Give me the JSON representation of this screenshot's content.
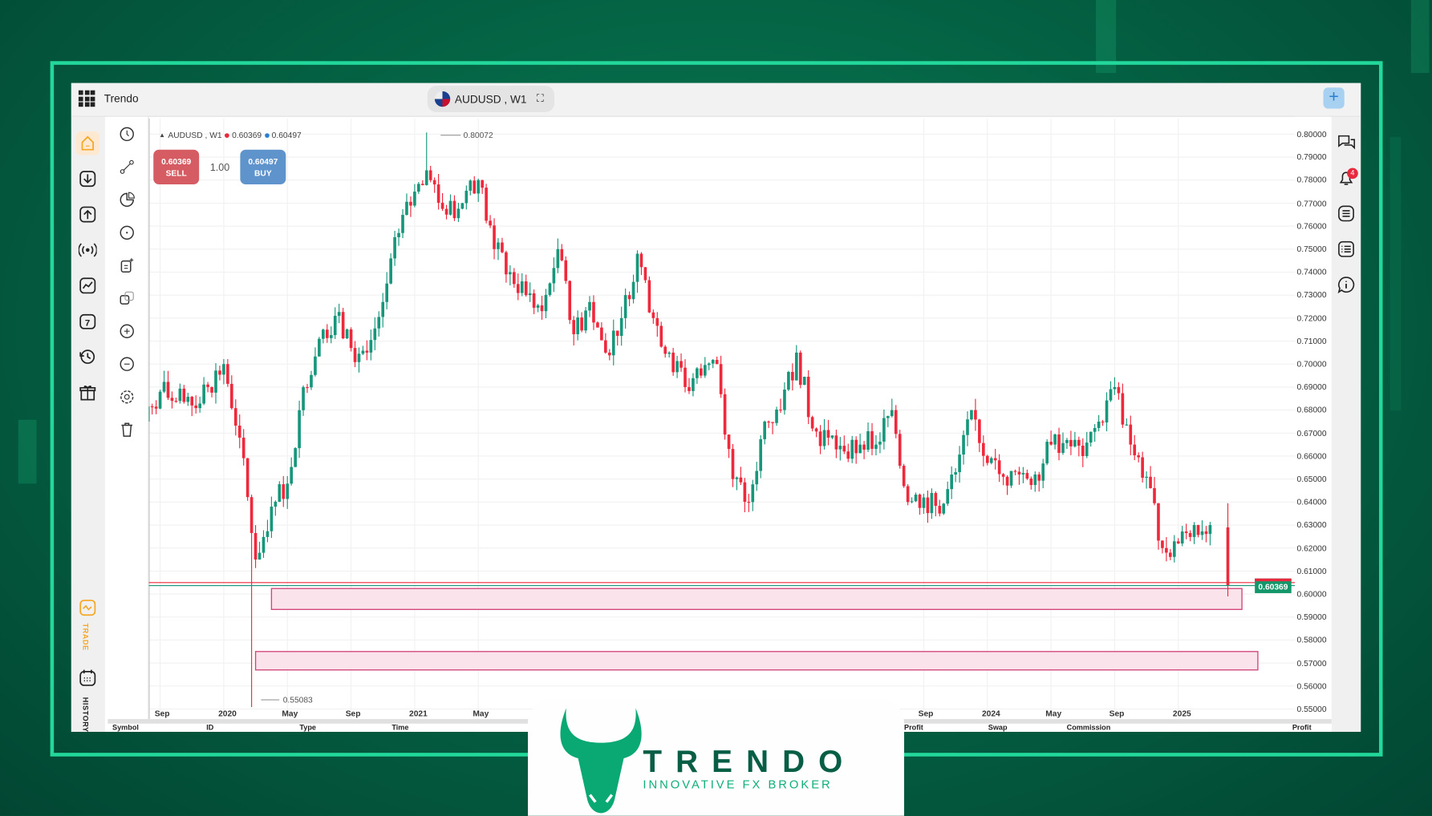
{
  "app": {
    "title": "Trendo",
    "symbol_label": "AUDUSD , W1"
  },
  "legend": {
    "symbol": "AUDUSD , W1",
    "bid": "0.60369",
    "ask": "0.60497"
  },
  "trade": {
    "sell_price": "0.60369",
    "sell_label": "SELL",
    "quantity": "1.00",
    "buy_price": "0.60497",
    "buy_label": "BUY"
  },
  "sidebar": {
    "trade_label": "TRADE",
    "history_label": "HISTORY",
    "items": [
      "home-icon",
      "download-icon",
      "upload-icon",
      "broadcast-icon",
      "chart-icon",
      "calendar-icon",
      "history-icon",
      "gift-icon"
    ]
  },
  "right_panel": {
    "notification_count": "4"
  },
  "table_headers": [
    "Symbol",
    "ID",
    "Type",
    "Time",
    "Profit",
    "Swap",
    "Commission",
    "Profit"
  ],
  "branding": {
    "name": "TRENDO",
    "tagline": "INNOVATIVE FX BROKER"
  },
  "colors": {
    "up": "#16967a",
    "down": "#f0283c",
    "accent": "#f5a623",
    "brand": "#0a7a55",
    "zone_fill": "#fbe3ec",
    "zone_border": "#d2477a"
  },
  "chart_data": {
    "type": "candlestick",
    "timeframe": "W1",
    "current_price_label": "0.60369",
    "high_label": "0.80072",
    "low_label": "0.55083",
    "y_ticks": [
      "0.80000",
      "0.79000",
      "0.78000",
      "0.77000",
      "0.76000",
      "0.75000",
      "0.74000",
      "0.73000",
      "0.72000",
      "0.71000",
      "0.70000",
      "0.69000",
      "0.68000",
      "0.67000",
      "0.66000",
      "0.65000",
      "0.64000",
      "0.63000",
      "0.62000",
      "0.61000",
      "0.60000",
      "0.59000",
      "0.58000",
      "0.57000",
      "0.56000",
      "0.55000"
    ],
    "ylim": [
      0.55,
      0.8
    ],
    "x_ticks": [
      {
        "label": "Sep",
        "date": "2019-09"
      },
      {
        "label": "2020",
        "date": "2020-01"
      },
      {
        "label": "May",
        "date": "2020-05"
      },
      {
        "label": "Sep",
        "date": "2020-09"
      },
      {
        "label": "2021",
        "date": "2021-01"
      },
      {
        "label": "May",
        "date": "2021-05"
      },
      {
        "label": "Sep",
        "date": "2023-09"
      },
      {
        "label": "2024",
        "date": "2024-01"
      },
      {
        "label": "May",
        "date": "2024-05"
      },
      {
        "label": "Sep",
        "date": "2024-09"
      },
      {
        "label": "2025",
        "date": "2025-01"
      }
    ],
    "monthly_close_approx": [
      [
        "2019-08",
        0.675
      ],
      [
        "2019-09",
        0.688
      ],
      [
        "2019-10",
        0.684
      ],
      [
        "2019-11",
        0.682
      ],
      [
        "2019-12",
        0.69
      ],
      [
        "2020-01",
        0.7
      ],
      [
        "2020-02",
        0.668
      ],
      [
        "2020-03",
        0.615
      ],
      [
        "2020-04",
        0.638
      ],
      [
        "2020-05",
        0.648
      ],
      [
        "2020-06",
        0.69
      ],
      [
        "2020-07",
        0.711
      ],
      [
        "2020-08",
        0.721
      ],
      [
        "2020-09",
        0.707
      ],
      [
        "2020-10",
        0.705
      ],
      [
        "2020-11",
        0.727
      ],
      [
        "2020-12",
        0.757
      ],
      [
        "2021-01",
        0.775
      ],
      [
        "2021-02",
        0.78
      ],
      [
        "2021-03",
        0.765
      ],
      [
        "2021-04",
        0.77
      ],
      [
        "2021-05",
        0.78
      ],
      [
        "2021-06",
        0.75
      ],
      [
        "2021-07",
        0.74
      ],
      [
        "2021-08",
        0.73
      ],
      [
        "2021-09",
        0.723
      ],
      [
        "2021-10",
        0.75
      ],
      [
        "2021-11",
        0.713
      ],
      [
        "2021-12",
        0.727
      ],
      [
        "2022-01",
        0.705
      ],
      [
        "2022-02",
        0.72
      ],
      [
        "2022-03",
        0.748
      ],
      [
        "2022-04",
        0.72
      ],
      [
        "2022-05",
        0.705
      ],
      [
        "2022-06",
        0.69
      ],
      [
        "2022-07",
        0.695
      ],
      [
        "2022-08",
        0.7
      ],
      [
        "2022-09",
        0.65
      ],
      [
        "2022-10",
        0.64
      ],
      [
        "2022-11",
        0.675
      ],
      [
        "2022-12",
        0.68
      ],
      [
        "2023-01",
        0.705
      ],
      [
        "2023-02",
        0.672
      ],
      [
        "2023-03",
        0.668
      ],
      [
        "2023-04",
        0.662
      ],
      [
        "2023-05",
        0.665
      ],
      [
        "2023-06",
        0.665
      ],
      [
        "2023-07",
        0.68
      ],
      [
        "2023-08",
        0.64
      ],
      [
        "2023-09",
        0.642
      ],
      [
        "2023-10",
        0.635
      ],
      [
        "2023-11",
        0.653
      ],
      [
        "2023-12",
        0.68
      ],
      [
        "2024-01",
        0.657
      ],
      [
        "2024-02",
        0.651
      ],
      [
        "2024-03",
        0.652
      ],
      [
        "2024-04",
        0.652
      ],
      [
        "2024-05",
        0.665
      ],
      [
        "2024-06",
        0.667
      ],
      [
        "2024-07",
        0.66
      ],
      [
        "2024-08",
        0.675
      ],
      [
        "2024-09",
        0.69
      ],
      [
        "2024-10",
        0.665
      ],
      [
        "2024-11",
        0.651
      ],
      [
        "2024-12",
        0.62
      ],
      [
        "2025-01",
        0.622
      ],
      [
        "2025-02",
        0.63
      ],
      [
        "2025-03",
        0.63
      ],
      [
        "2025-04",
        0.60369
      ]
    ],
    "extremes": [
      {
        "date": "2021-02",
        "high": 0.80072
      },
      {
        "date": "2020-03",
        "low": 0.55083
      }
    ],
    "price_lines": [
      {
        "name": "ask",
        "value": 0.60497,
        "color": "#f0283c"
      },
      {
        "name": "bid",
        "value": 0.60369,
        "color": "#16967a"
      }
    ],
    "zones": [
      {
        "from": "2020-04",
        "to": "2025-05",
        "top": 0.6024,
        "bottom": 0.5933
      },
      {
        "from": "2020-03",
        "to": "2025-06",
        "top": 0.575,
        "bottom": 0.567
      }
    ]
  }
}
